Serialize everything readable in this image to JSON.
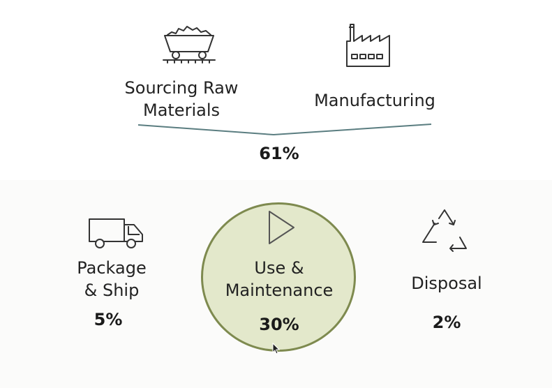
{
  "stages": {
    "sourcing": {
      "label": "Sourcing Raw\nMaterials",
      "icon": "mine-cart-icon"
    },
    "manufacturing": {
      "label": "Manufacturing",
      "icon": "factory-icon"
    },
    "combined_percent": "61%",
    "package": {
      "label": "Package\n& Ship",
      "percent": "5%",
      "icon": "truck-icon"
    },
    "use": {
      "label": "Use &\nMaintenance",
      "percent": "30%",
      "icon": "play-icon"
    },
    "disposal": {
      "label": "Disposal",
      "percent": "2%",
      "icon": "recycle-icon"
    }
  },
  "colors": {
    "line": "#5a7d80",
    "circle_fill": "#e3e8cb",
    "circle_border": "#7e8a4f",
    "icon_stroke": "#333333"
  }
}
